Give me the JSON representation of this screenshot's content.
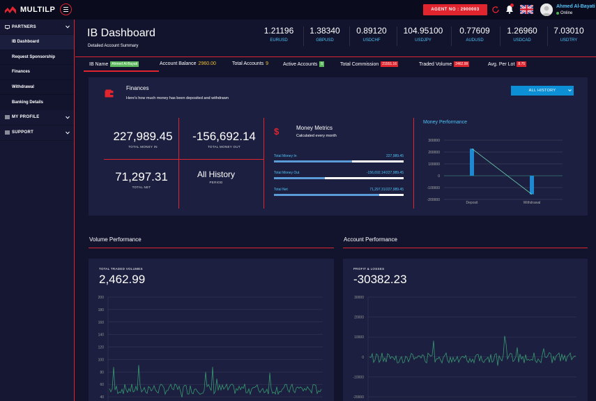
{
  "topbar": {
    "logo_text": "MULTILP",
    "agent_label": "AGENT NO : 2900003",
    "user_name": "Ahmed  Al-Bayati",
    "user_status": "Online"
  },
  "sidebar": {
    "groups": [
      {
        "label": "PARTNERS"
      },
      {
        "label": "MY PROFILE"
      },
      {
        "label": "SUPPORT"
      }
    ],
    "items": [
      {
        "label": "IB Dashboard"
      },
      {
        "label": "Request Sponsorship"
      },
      {
        "label": "Finances"
      },
      {
        "label": "Withdrawal"
      },
      {
        "label": "Banking Details"
      }
    ]
  },
  "header": {
    "title": "IB Dashboard",
    "subtitle": "Detailed Account Summary",
    "tickers": [
      {
        "value": "1.21196",
        "pair": "EURUSD"
      },
      {
        "value": "1.38340",
        "pair": "GBPUSD"
      },
      {
        "value": "0.89120",
        "pair": "USDCHF"
      },
      {
        "value": "104.95100",
        "pair": "USDJPY"
      },
      {
        "value": "0.77609",
        "pair": "AUDUSD"
      },
      {
        "value": "1.26960",
        "pair": "USDCAD"
      },
      {
        "value": "7.03010",
        "pair": "USDTRY"
      }
    ]
  },
  "infobar": {
    "ib_name_label": "IB Name",
    "ib_name_value": "Ahmed  Al-Bayati",
    "balance_label": "Account Balance",
    "balance_value": "2960.00",
    "total_accounts_label": "Total Accounts",
    "total_accounts_value": "9",
    "active_accounts_label": "Active Accounts",
    "active_accounts_value": "5",
    "commission_label": "Total Commission",
    "commission_value": "21551.16",
    "volume_label": "Traded Volume",
    "volume_value": "2462.99",
    "avg_lot_label": "Avg. Per Lot",
    "avg_lot_value": "8.75"
  },
  "finances": {
    "title": "Finances",
    "subtitle": "Here's how much money has been deposited and withdrawn",
    "history_button": "ALL HISTORY",
    "total_in": "227,989.45",
    "total_in_label": "TOTAL MONEY IN",
    "total_out": "-156,692.14",
    "total_out_label": "TOTAL MONEY OUT",
    "total_net": "71,297.31",
    "total_net_label": "TOTAL NET",
    "period": "All History",
    "period_label": "PERIOD",
    "metrics_title": "Money Metrics",
    "metrics_sub": "Calculated every month",
    "metrics": [
      {
        "label": "Total Money In",
        "value": "227,989.45",
        "fraction": 0.6
      },
      {
        "label": "Total Money Out",
        "value": "-156,692.14/227,989.45",
        "fraction": 0.39
      },
      {
        "label": "Total Net",
        "value": "71,297.31/227,989.45",
        "fraction": 0.81
      }
    ],
    "perf_title": "Money Performance"
  },
  "volume_section": {
    "title": "Volume Performance",
    "caption": "TOTAL TRADED VOLUMES",
    "value": "2,462.99"
  },
  "account_section": {
    "title": "Account Performance",
    "caption": "PROFIT & LOSSES",
    "value": "-30382.23"
  },
  "colors": {
    "accent": "#e0252f",
    "link": "#4fc3f7",
    "panel": "#1c1f3f",
    "background": "#12142e"
  },
  "chart_data": [
    {
      "type": "bar",
      "categories": [
        "Deposit",
        "Withdrawal"
      ],
      "values": [
        227989.45,
        -156692.14
      ],
      "y_ticks": [
        "300000",
        "200000",
        "100000",
        "0",
        "-100000",
        "-200000"
      ],
      "ylim": [
        -200000,
        300000
      ]
    },
    {
      "type": "line",
      "y_ticks": [
        "200",
        "180",
        "160",
        "140",
        "120",
        "100",
        "80",
        "60",
        "40"
      ],
      "ylim": [
        40,
        200
      ]
    },
    {
      "type": "line",
      "y_ticks": [
        "30000",
        "20000",
        "10000",
        "0",
        "-10000",
        "-20000"
      ],
      "ylim": [
        -20000,
        30000
      ]
    }
  ]
}
